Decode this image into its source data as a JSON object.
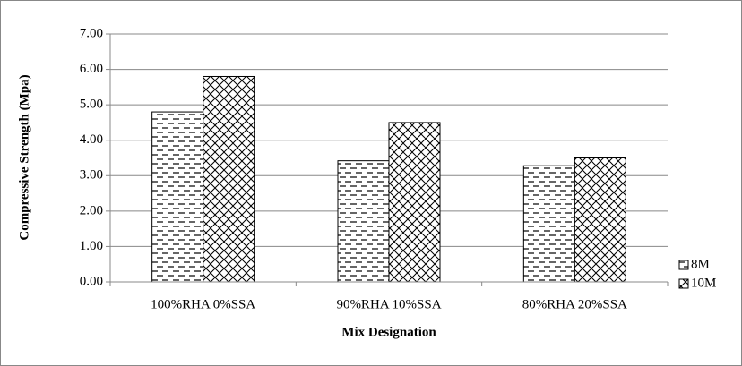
{
  "chart_data": {
    "type": "bar",
    "x_label": "Mix Designation",
    "y_label": "Compressive Strength (Mpa)",
    "categories": [
      "100%RHA 0%SSA",
      "90%RHA 10%SSA",
      "80%RHA 20%SSA"
    ],
    "series": [
      {
        "name": "8M",
        "color": "#000000",
        "pattern": "dashes",
        "values": [
          4.8,
          3.42,
          3.28
        ]
      },
      {
        "name": "10M",
        "color": "#000000",
        "pattern": "crosshatch",
        "values": [
          5.8,
          4.5,
          3.5
        ]
      }
    ],
    "ylim": [
      0,
      7
    ],
    "yticks": [
      {
        "value": 0,
        "label": "0.00"
      },
      {
        "value": 1,
        "label": "1.00"
      },
      {
        "value": 2,
        "label": "2.00"
      },
      {
        "value": 3,
        "label": "3.00"
      },
      {
        "value": 4,
        "label": "4.00"
      },
      {
        "value": 5,
        "label": "5.00"
      },
      {
        "value": 6,
        "label": "6.00"
      },
      {
        "value": 7,
        "label": "7.00"
      }
    ],
    "grid": true,
    "legend": "right"
  }
}
